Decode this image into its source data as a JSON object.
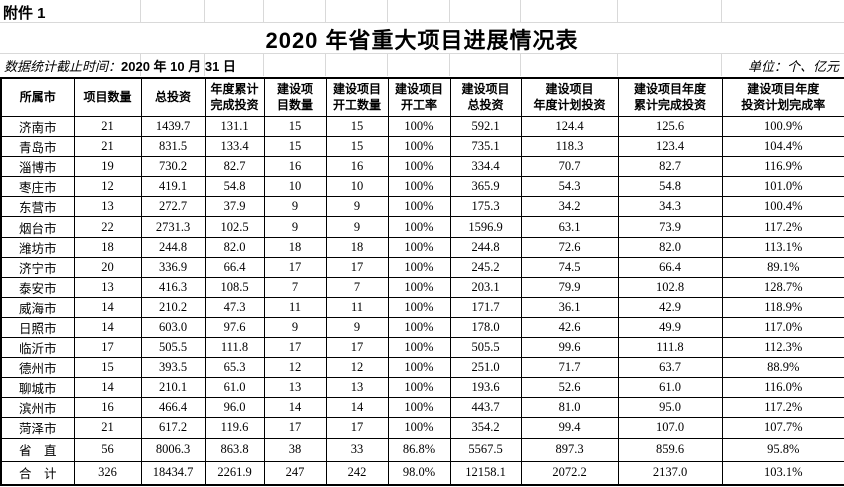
{
  "attachment_label": "附件 1",
  "title": "2020 年省重大项目进展情况表",
  "meta": {
    "date_label": "数据统计截止时间：",
    "date_value": "2020 年 10 月 31 日",
    "unit_note": "单位：个、亿元"
  },
  "table": {
    "headers": [
      "所属市",
      "项目数量",
      "总投资",
      "年度累计\n完成投资",
      "建设项\n目数量",
      "建设项目\n开工数量",
      "建设项目\n开工率",
      "建设项目\n总投资",
      "建设项目\n年度计划投资",
      "建设项目年度\n累计完成投资",
      "建设项目年度\n投资计划完成率"
    ],
    "rows": [
      [
        "济南市",
        "21",
        "1439.7",
        "131.1",
        "15",
        "15",
        "100%",
        "592.1",
        "124.4",
        "125.6",
        "100.9%"
      ],
      [
        "青岛市",
        "21",
        "831.5",
        "133.4",
        "15",
        "15",
        "100%",
        "735.1",
        "118.3",
        "123.4",
        "104.4%"
      ],
      [
        "淄博市",
        "19",
        "730.2",
        "82.7",
        "16",
        "16",
        "100%",
        "334.4",
        "70.7",
        "82.7",
        "116.9%"
      ],
      [
        "枣庄市",
        "12",
        "419.1",
        "54.8",
        "10",
        "10",
        "100%",
        "365.9",
        "54.3",
        "54.8",
        "101.0%"
      ],
      [
        "东营市",
        "13",
        "272.7",
        "37.9",
        "9",
        "9",
        "100%",
        "175.3",
        "34.2",
        "34.3",
        "100.4%"
      ],
      [
        "烟台市",
        "22",
        "2731.3",
        "102.5",
        "9",
        "9",
        "100%",
        "1596.9",
        "63.1",
        "73.9",
        "117.2%"
      ],
      [
        "潍坊市",
        "18",
        "244.8",
        "82.0",
        "18",
        "18",
        "100%",
        "244.8",
        "72.6",
        "82.0",
        "113.1%"
      ],
      [
        "济宁市",
        "20",
        "336.9",
        "66.4",
        "17",
        "17",
        "100%",
        "245.2",
        "74.5",
        "66.4",
        "89.1%"
      ],
      [
        "泰安市",
        "13",
        "416.3",
        "108.5",
        "7",
        "7",
        "100%",
        "203.1",
        "79.9",
        "102.8",
        "128.7%"
      ],
      [
        "威海市",
        "14",
        "210.2",
        "47.3",
        "11",
        "11",
        "100%",
        "171.7",
        "36.1",
        "42.9",
        "118.9%"
      ],
      [
        "日照市",
        "14",
        "603.0",
        "97.6",
        "9",
        "9",
        "100%",
        "178.0",
        "42.6",
        "49.9",
        "117.0%"
      ],
      [
        "临沂市",
        "17",
        "505.5",
        "111.8",
        "17",
        "17",
        "100%",
        "505.5",
        "99.6",
        "111.8",
        "112.3%"
      ],
      [
        "德州市",
        "15",
        "393.5",
        "65.3",
        "12",
        "12",
        "100%",
        "251.0",
        "71.7",
        "63.7",
        "88.9%"
      ],
      [
        "聊城市",
        "14",
        "210.1",
        "61.0",
        "13",
        "13",
        "100%",
        "193.6",
        "52.6",
        "61.0",
        "116.0%"
      ],
      [
        "滨州市",
        "16",
        "466.4",
        "96.0",
        "14",
        "14",
        "100%",
        "443.7",
        "81.0",
        "95.0",
        "117.2%"
      ],
      [
        "菏泽市",
        "21",
        "617.2",
        "119.6",
        "17",
        "17",
        "100%",
        "354.2",
        "99.4",
        "107.0",
        "107.7%"
      ],
      [
        "省　直",
        "56",
        "8006.3",
        "863.8",
        "38",
        "33",
        "86.8%",
        "5567.5",
        "897.3",
        "859.6",
        "95.8%"
      ],
      [
        "合　计",
        "326",
        "18434.7",
        "2261.9",
        "247",
        "242",
        "98.0%",
        "12158.1",
        "2072.2",
        "2137.0",
        "103.1%"
      ]
    ]
  }
}
